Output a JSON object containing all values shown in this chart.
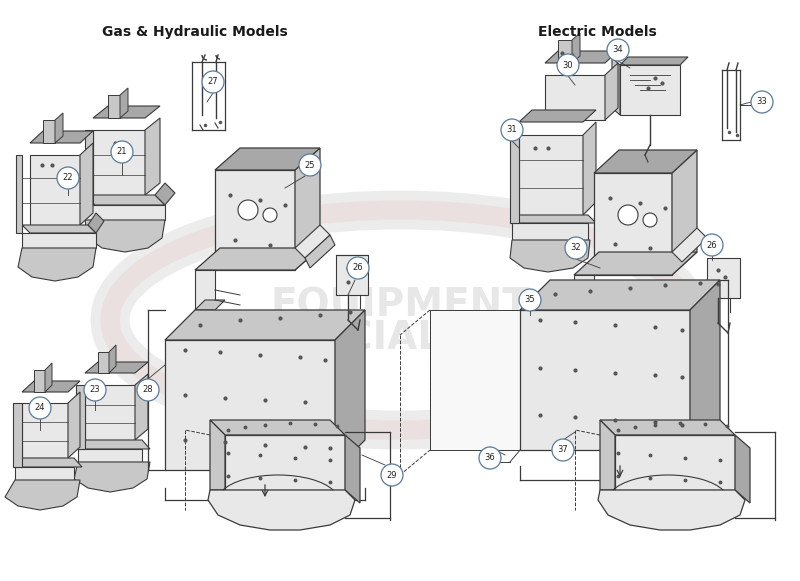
{
  "title_left": "Gas & Hydraulic Models",
  "title_right": "Electric Models",
  "bg": "#ffffff",
  "lc": "#3a3a3a",
  "pf_light": "#e8e8e8",
  "pf_mid": "#c8c8c8",
  "pf_dark": "#a8a8a8",
  "callout_edge": "#5a7a9a",
  "callout_bg": "#ffffff",
  "title_color": "#1a1a1a",
  "wm_gray": "#d0d0d0",
  "wm_pink": "#e8c0c0",
  "figsize": [
    8.0,
    5.81
  ],
  "dpi": 100
}
